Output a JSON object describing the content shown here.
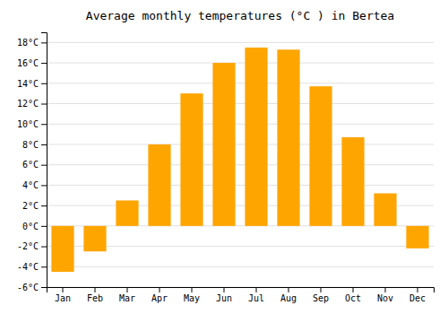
{
  "chart_data": {
    "type": "bar",
    "title": "Average monthly temperatures (°C ) in Bertea",
    "categories": [
      "Jan",
      "Feb",
      "Mar",
      "Apr",
      "May",
      "Jun",
      "Jul",
      "Aug",
      "Sep",
      "Oct",
      "Nov",
      "Dec"
    ],
    "values": [
      -4.5,
      -2.5,
      2.5,
      8.0,
      13.0,
      16.0,
      17.5,
      17.3,
      13.7,
      8.7,
      3.2,
      -2.2
    ],
    "color": "#FFA500",
    "ylim": [
      -6,
      19
    ],
    "yticks": [
      {
        "value": -6,
        "label": "-6°C"
      },
      {
        "value": -4,
        "label": "-4°C"
      },
      {
        "value": -2,
        "label": "-2°C"
      },
      {
        "value": 0,
        "label": "0°C"
      },
      {
        "value": 2,
        "label": "2°C"
      },
      {
        "value": 4,
        "label": "4°C"
      },
      {
        "value": 6,
        "label": "6°C"
      },
      {
        "value": 8,
        "label": "8°C"
      },
      {
        "value": 10,
        "label": "10°C"
      },
      {
        "value": 12,
        "label": "12°C"
      },
      {
        "value": 14,
        "label": "14°C"
      },
      {
        "value": 16,
        "label": "16°C"
      },
      {
        "value": 18,
        "label": "18°C"
      }
    ],
    "grid": true
  }
}
